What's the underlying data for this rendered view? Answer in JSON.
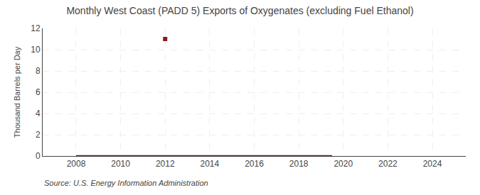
{
  "chart_data": {
    "type": "line",
    "title": "Monthly West Coast (PADD 5) Exports of Oxygenates (excluding Fuel Ethanol)",
    "ylabel": "Thousand Barrels per Day",
    "annotations": [
      "Source: U.S. Energy Information Administration"
    ],
    "series": [
      {
        "type": "line",
        "color": "#8b1a1a",
        "x": [
          2008.0,
          2019.5
        ],
        "values": [
          0.0,
          0.0
        ]
      },
      {
        "type": "scatter",
        "marker": "square",
        "color": "#8b1a1a",
        "x": [
          2012.0
        ],
        "values": [
          11.0
        ]
      }
    ],
    "xlim": [
      2006.5,
      2025.5
    ],
    "xticks": [
      2008,
      2010,
      2012,
      2014,
      2016,
      2018,
      2020,
      2022,
      2024
    ],
    "ylim": [
      0,
      12
    ],
    "yticks": [
      0,
      2,
      4,
      6,
      8,
      10,
      12
    ],
    "grid": true
  }
}
